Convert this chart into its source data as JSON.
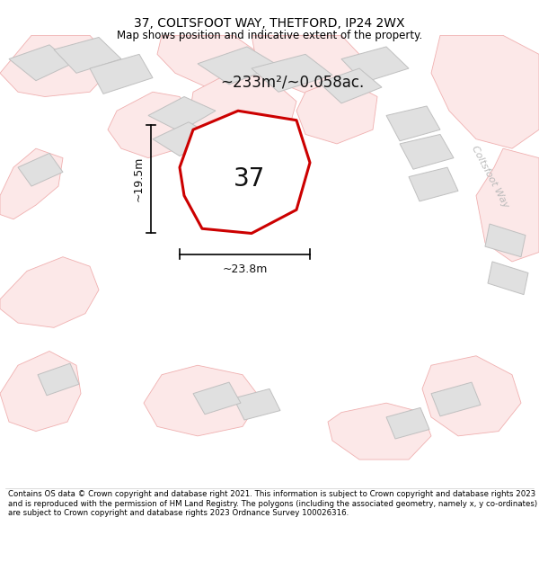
{
  "title": "37, COLTSFOOT WAY, THETFORD, IP24 2WX",
  "subtitle": "Map shows position and indicative extent of the property.",
  "footer": "Contains OS data © Crown copyright and database right 2021. This information is subject to Crown copyright and database rights 2023 and is reproduced with the permission of HM Land Registry. The polygons (including the associated geometry, namely x, y co-ordinates) are subject to Crown copyright and database rights 2023 Ordnance Survey 100026316.",
  "area_label": "~233m²/~0.058ac.",
  "number_label": "37",
  "width_label": "~23.8m",
  "height_label": "~19.5m",
  "map_bg": "#ffffff",
  "building_fill": "#e0e0e0",
  "building_edge": "#c0c0c0",
  "road_fill": "#fce8e8",
  "road_edge": "#f0b0b0",
  "highlight_color": "#cc0000",
  "highlight_fill": "#ffffff",
  "coltsfoot_color": "#bbbbbb",
  "title_fontsize": 10,
  "subtitle_fontsize": 8.5,
  "footer_fontsize": 6.2,
  "number_fontsize": 20,
  "area_fontsize": 12,
  "dim_fontsize": 9
}
